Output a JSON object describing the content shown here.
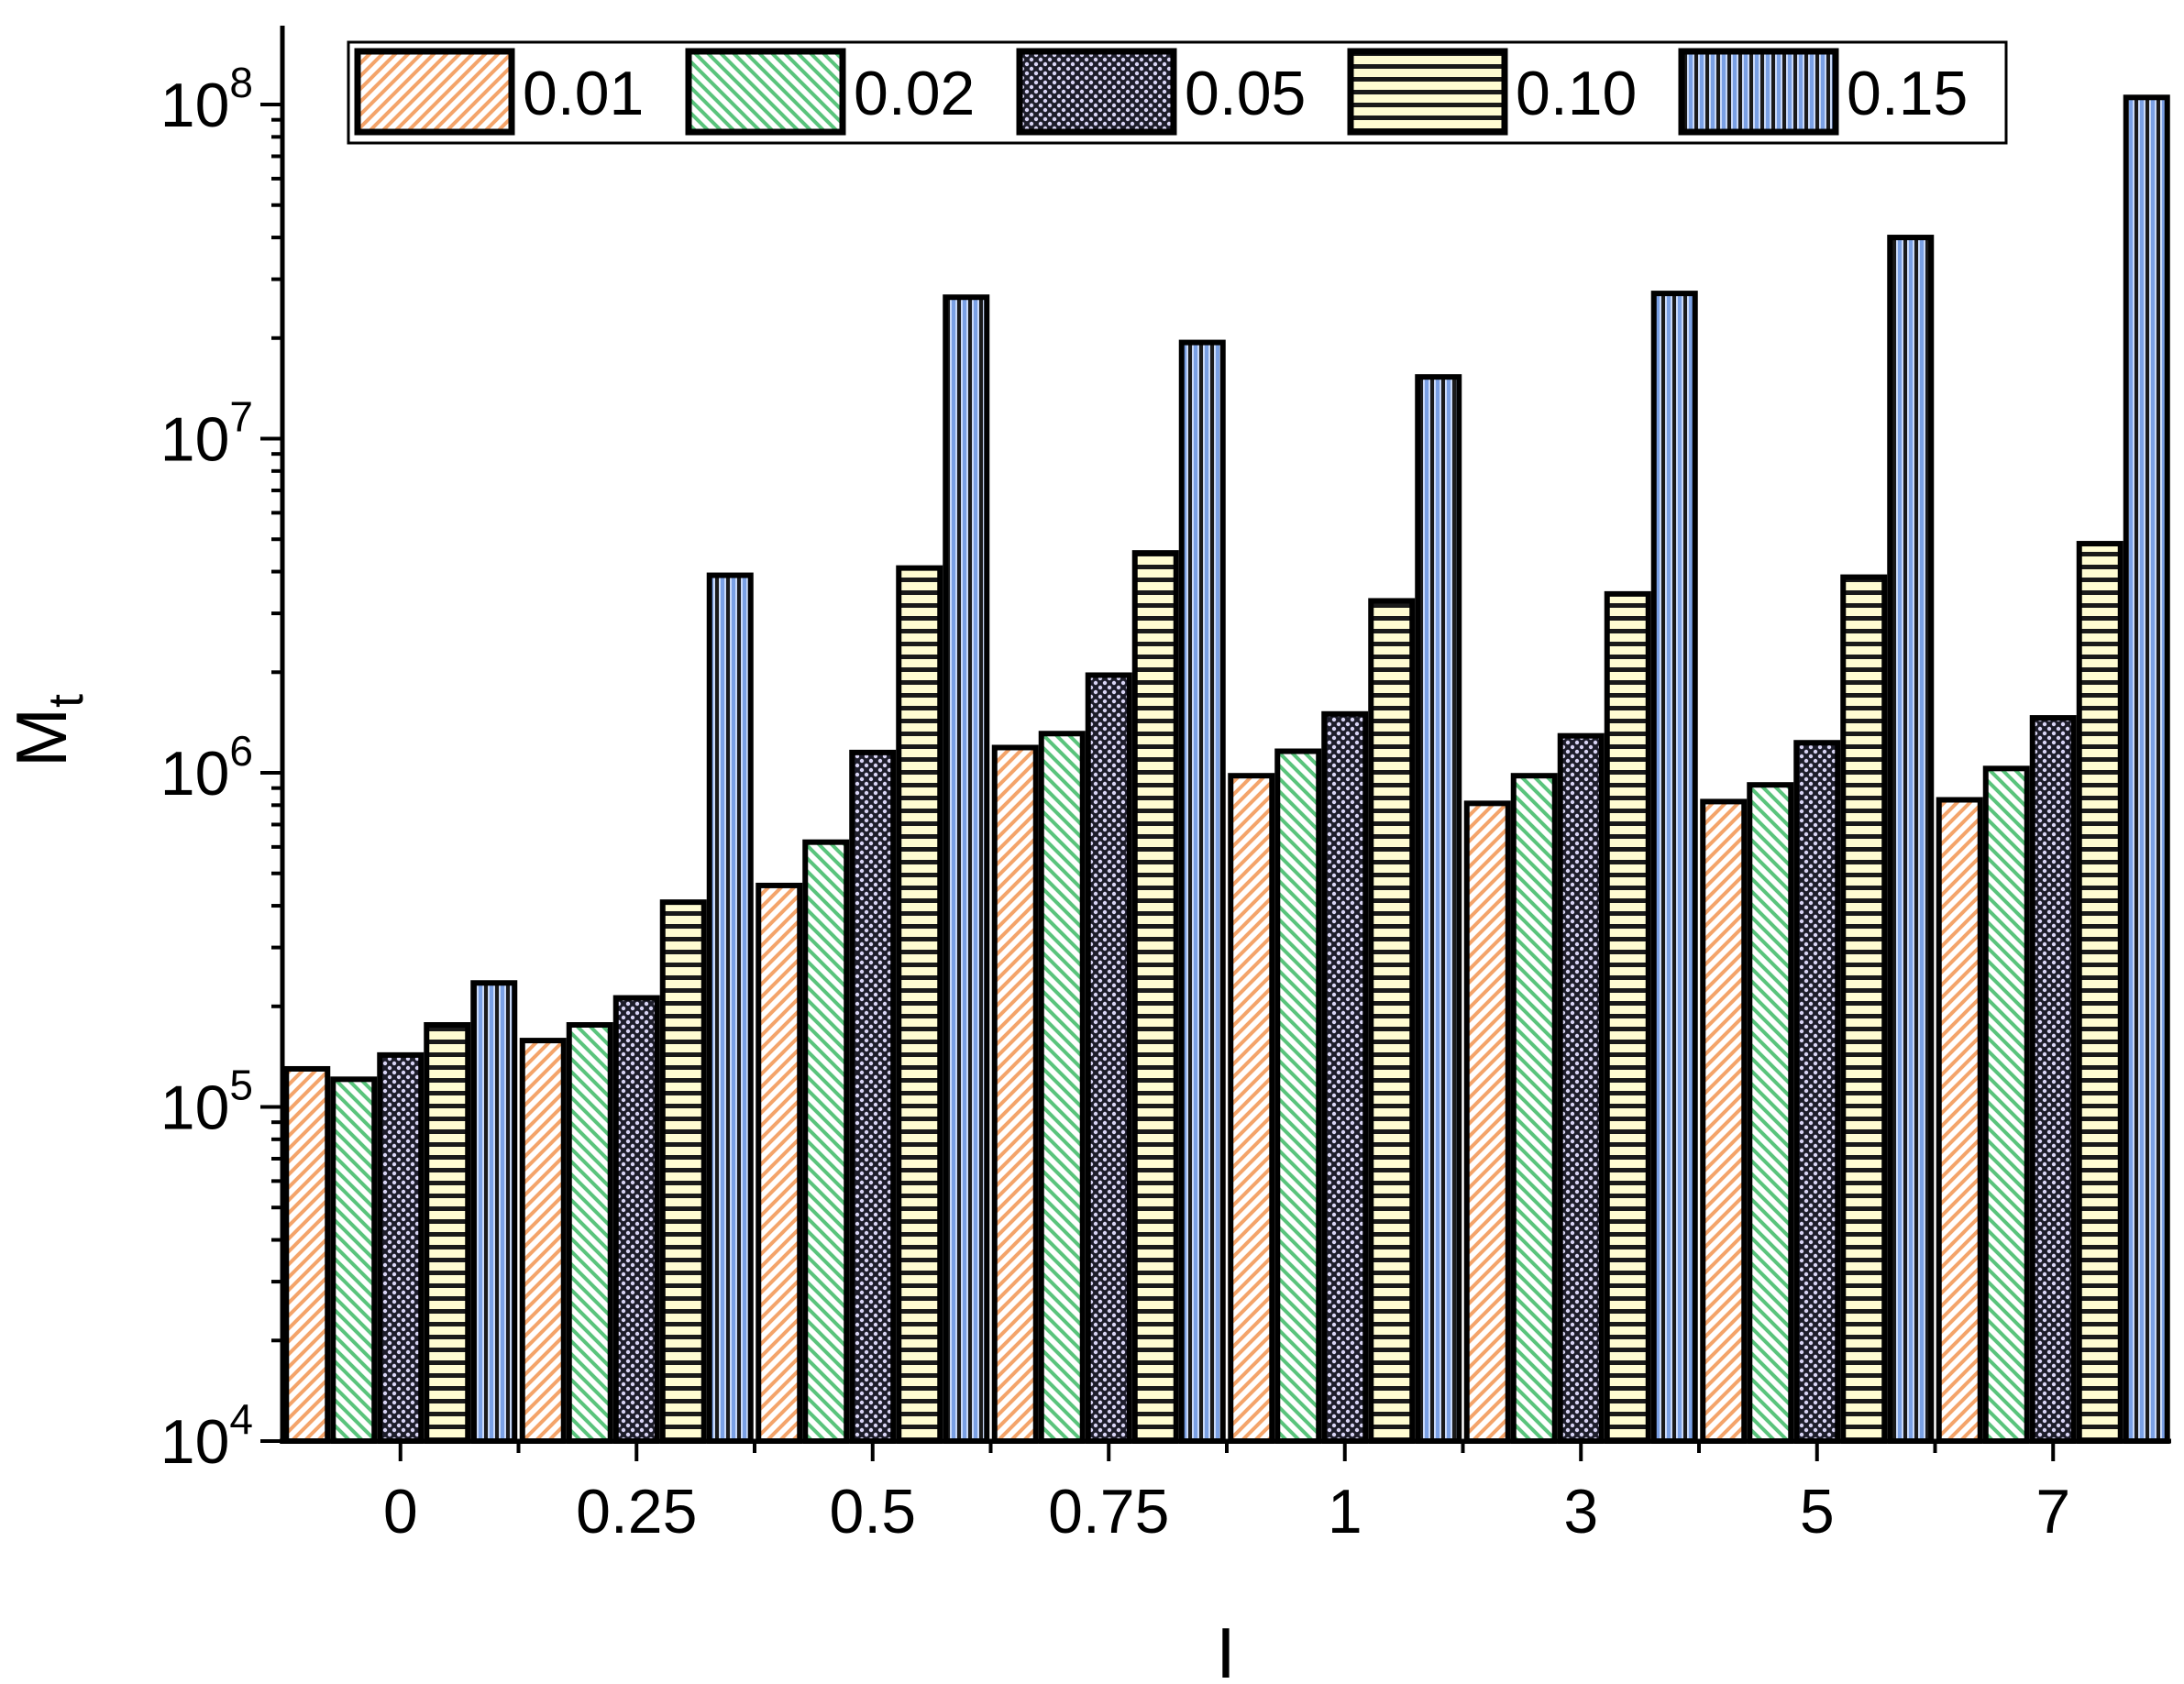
{
  "chart_data": {
    "type": "bar",
    "title": "",
    "xlabel": "I",
    "ylabel": "M",
    "ylabel_sub": "t",
    "yscale": "log",
    "ylim": [
      10000,
      170000000
    ],
    "ytick_base": "10",
    "yticks": [
      {
        "value": 10000,
        "exp": "4"
      },
      {
        "value": 100000,
        "exp": "5"
      },
      {
        "value": 1000000,
        "exp": "6"
      },
      {
        "value": 10000000,
        "exp": "7"
      },
      {
        "value": 100000000,
        "exp": "8"
      }
    ],
    "categories": [
      "0",
      "0.25",
      "0.5",
      "0.75",
      "1",
      "3",
      "5",
      "7"
    ],
    "series": [
      {
        "name": "0.01",
        "color": "#f9c49c",
        "pattern": "diag-right",
        "values": [
          130000,
          158000,
          460000,
          1190000,
          980000,
          810000,
          820000,
          830000
        ]
      },
      {
        "name": "0.02",
        "color": "#9fdfb2",
        "pattern": "diag-left",
        "values": [
          121000,
          176000,
          620000,
          1310000,
          1160000,
          980000,
          920000,
          1030000
        ]
      },
      {
        "name": "0.05",
        "color": "#c4c4ec",
        "pattern": "crosshatch",
        "values": [
          143000,
          212000,
          1150000,
          1960000,
          1500000,
          1290000,
          1230000,
          1460000
        ]
      },
      {
        "name": "0.10",
        "color": "#f6f29a",
        "pattern": "horizontal",
        "values": [
          176000,
          410000,
          4100000,
          4550000,
          3270000,
          3430000,
          3850000,
          4850000
        ]
      },
      {
        "name": "0.15",
        "color": "#a9c3ef",
        "pattern": "vertical",
        "values": [
          235000,
          3900000,
          26500000,
          19400000,
          15300000,
          27200000,
          40000000,
          105000000
        ]
      }
    ],
    "legend": "top-center, single row, boxed",
    "grid": false
  }
}
